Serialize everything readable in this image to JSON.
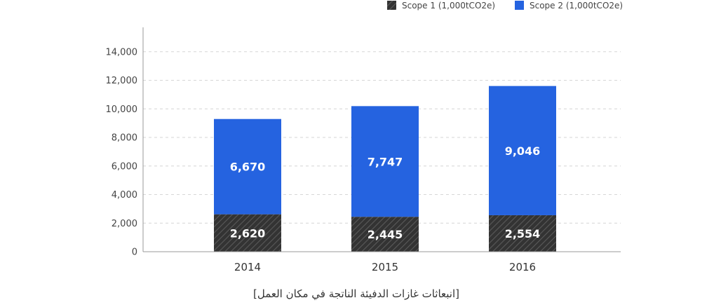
{
  "chart_data": {
    "type": "bar",
    "stacked": true,
    "categories": [
      "2014",
      "2015",
      "2016"
    ],
    "series": [
      {
        "name": "Scope 1 (1,000tCO2e)",
        "values": [
          2620,
          2445,
          2554
        ],
        "color": "#333333",
        "pattern": "diagonal-hatch"
      },
      {
        "name": "Scope 2 (1,000tCO2e)",
        "values": [
          6670,
          7747,
          9046
        ],
        "color": "#2563e0"
      }
    ],
    "data_labels": {
      "Scope 1 (1,000tCO2e)": [
        "2,620",
        "2,445",
        "2,554"
      ],
      "Scope 2 (1,000tCO2e)": [
        "6,670",
        "7,747",
        "9,046"
      ]
    },
    "yticks": [
      "0",
      "2,000",
      "4,000",
      "6,000",
      "8,000",
      "10,000",
      "12,000",
      "14,000"
    ],
    "ylim": [
      0,
      15700
    ],
    "grid": true,
    "legend_position": "top-right",
    "caption": "[انبعاثات غازات الدفيئة الناتجة في مكان العمل]"
  }
}
